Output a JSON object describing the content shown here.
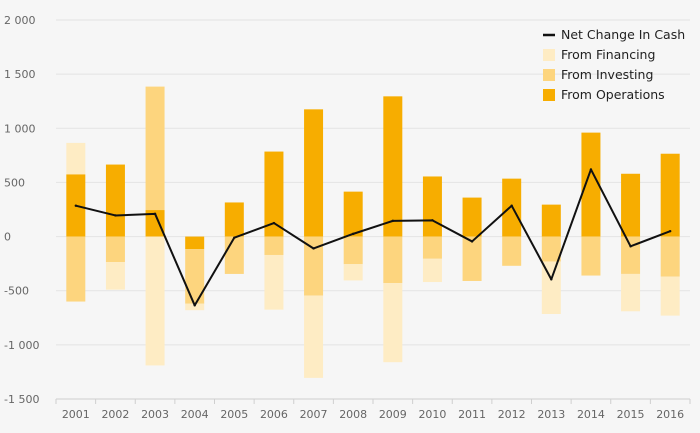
{
  "chart_data": {
    "type": "bar",
    "stacked": true,
    "categories": [
      "2001",
      "2002",
      "2003",
      "2004",
      "2005",
      "2006",
      "2007",
      "2008",
      "2009",
      "2010",
      "2011",
      "2012",
      "2013",
      "2014",
      "2015",
      "2016"
    ],
    "series": [
      {
        "name": "From Operations",
        "color": "#f7ad00",
        "values": [
          575,
          665,
          245,
          -115,
          315,
          785,
          1175,
          415,
          1295,
          555,
          360,
          535,
          295,
          960,
          580,
          765
        ]
      },
      {
        "name": "From Investing",
        "color": "#fdd57e",
        "values": [
          -600,
          -235,
          1140,
          -505,
          -345,
          -170,
          -545,
          -255,
          -430,
          -205,
          -410,
          -270,
          -230,
          -360,
          -345,
          -370
        ]
      },
      {
        "name": "From Financing",
        "color": "#feecc4",
        "values": [
          290,
          -255,
          -1190,
          -60,
          0,
          -505,
          -760,
          -150,
          -730,
          -215,
          0,
          0,
          -485,
          0,
          -345,
          -360
        ]
      }
    ],
    "line_series": {
      "name": "Net Change In Cash",
      "color": "#111111",
      "values": [
        285,
        195,
        210,
        -635,
        -10,
        125,
        -110,
        25,
        145,
        150,
        -45,
        285,
        -395,
        620,
        -90,
        50
      ]
    },
    "ylim": [
      -1500,
      2000
    ],
    "yticks": [
      2000,
      1500,
      1000,
      500,
      0,
      -500,
      -1000,
      -1500
    ],
    "ytick_labels": [
      "2 000",
      "1 500",
      "1 000",
      "500",
      "0",
      "-500",
      "-1 000",
      "-1 500"
    ],
    "grid": true,
    "legend_position": "top-right",
    "legend": [
      "Net Change In Cash",
      "From Financing",
      "From Investing",
      "From Operations"
    ]
  }
}
